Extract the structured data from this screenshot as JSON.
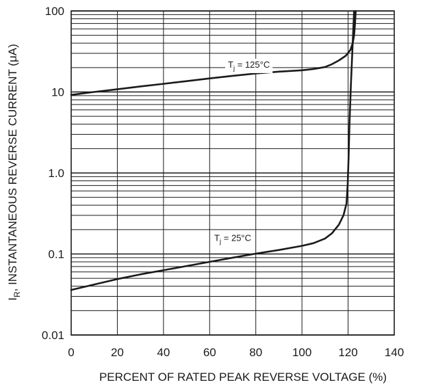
{
  "chart_data": {
    "type": "line",
    "title": "",
    "xlabel": "PERCENT OF RATED PEAK REVERSE VOLTAGE (%)",
    "ylabel_main": "I",
    "ylabel_sub": "R",
    "ylabel_rest": ", INSTANTANEOUS REVERSE CURRENT (μA)",
    "xlim": [
      0,
      140
    ],
    "ylim": [
      0.01,
      100
    ],
    "y_scale": "log",
    "grid": true,
    "x_ticks": [
      "0",
      "20",
      "40",
      "60",
      "80",
      "100",
      "120",
      "140"
    ],
    "y_ticks": [
      {
        "value": 0.01,
        "label": "0.01"
      },
      {
        "value": 0.1,
        "label": "0.1"
      },
      {
        "value": 1,
        "label": "1.0"
      },
      {
        "value": 10,
        "label": "10"
      },
      {
        "value": 100,
        "label": "100"
      }
    ],
    "series": [
      {
        "label_main": "T",
        "label_sub": "j",
        "label_rest": " = 125°C",
        "label_at": {
          "x": 77,
          "y": 22
        },
        "points": [
          [
            0,
            9.2
          ],
          [
            10,
            10.0
          ],
          [
            20,
            10.8
          ],
          [
            30,
            11.7
          ],
          [
            40,
            12.6
          ],
          [
            50,
            13.6
          ],
          [
            60,
            14.7
          ],
          [
            70,
            15.8
          ],
          [
            80,
            16.9
          ],
          [
            90,
            17.8
          ],
          [
            100,
            18.5
          ],
          [
            105,
            19.2
          ],
          [
            110,
            20.3
          ],
          [
            113,
            22.0
          ],
          [
            116,
            24.5
          ],
          [
            119,
            28.0
          ],
          [
            121,
            33.0
          ],
          [
            122,
            40.0
          ],
          [
            122.6,
            50.0
          ],
          [
            123,
            70.0
          ],
          [
            123.3,
            100.0
          ]
        ]
      },
      {
        "label_main": "T",
        "label_sub": "j",
        "label_rest": " = 25°C",
        "label_at": {
          "x": 70,
          "y": 0.16
        },
        "points": [
          [
            0,
            0.036
          ],
          [
            10,
            0.042
          ],
          [
            20,
            0.049
          ],
          [
            30,
            0.056
          ],
          [
            40,
            0.063
          ],
          [
            50,
            0.071
          ],
          [
            60,
            0.08
          ],
          [
            70,
            0.09
          ],
          [
            80,
            0.101
          ],
          [
            90,
            0.112
          ],
          [
            100,
            0.126
          ],
          [
            105,
            0.136
          ],
          [
            110,
            0.155
          ],
          [
            113,
            0.18
          ],
          [
            116,
            0.23
          ],
          [
            118,
            0.3
          ],
          [
            119.3,
            0.42
          ],
          [
            119.8,
            0.7
          ],
          [
            120.2,
            1.5
          ],
          [
            120.6,
            4.0
          ],
          [
            121.2,
            12.0
          ],
          [
            121.8,
            30.0
          ],
          [
            122.6,
            100.0
          ]
        ]
      }
    ]
  }
}
